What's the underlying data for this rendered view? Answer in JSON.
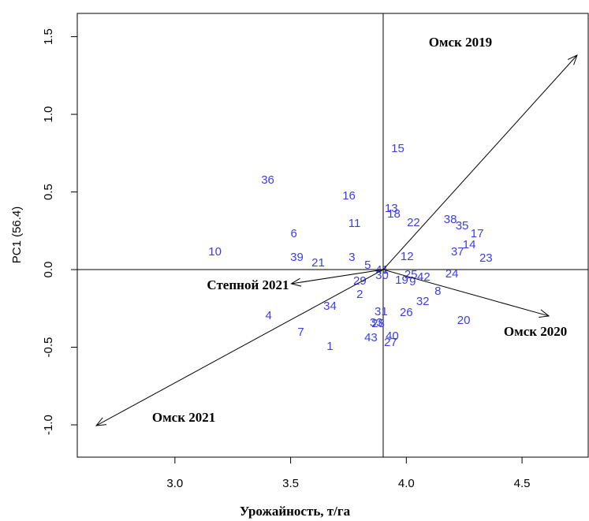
{
  "chart_data": {
    "type": "scatter",
    "xlabel": "Урожайность, т/га",
    "ylabel": "PC1 (56.4)",
    "xlim": [
      2.578,
      4.786
    ],
    "ylim": [
      -1.208,
      1.65
    ],
    "xticks": [
      {
        "value": 3.0,
        "label": "3.0"
      },
      {
        "value": 3.5,
        "label": "3.5"
      },
      {
        "value": 4.0,
        "label": "4.0"
      },
      {
        "value": 4.5,
        "label": "4.5"
      }
    ],
    "yticks": [
      {
        "value": -1.0,
        "label": "-1.0"
      },
      {
        "value": -0.5,
        "label": "-0.5"
      },
      {
        "value": 0.0,
        "label": "0.0"
      },
      {
        "value": 0.5,
        "label": "0.5"
      },
      {
        "value": 1.0,
        "label": "1.0"
      },
      1.5
    ],
    "center": [
      3.9,
      0
    ],
    "color": "#3c3cf0",
    "points": [
      {
        "label": "15",
        "x": 3.963,
        "y": 0.777
      },
      {
        "label": "36",
        "x": 3.401,
        "y": 0.574
      },
      {
        "label": "16",
        "x": 3.752,
        "y": 0.472
      },
      {
        "label": "13",
        "x": 3.935,
        "y": 0.391
      },
      {
        "label": "18",
        "x": 3.946,
        "y": 0.355
      },
      {
        "label": "11",
        "x": 3.776,
        "y": 0.294
      },
      {
        "label": "22",
        "x": 4.031,
        "y": 0.299
      },
      {
        "label": "38",
        "x": 4.19,
        "y": 0.32
      },
      {
        "label": "35",
        "x": 4.241,
        "y": 0.279
      },
      {
        "label": "17",
        "x": 4.306,
        "y": 0.228
      },
      {
        "label": "6",
        "x": 3.514,
        "y": 0.228
      },
      {
        "label": "14",
        "x": 4.272,
        "y": 0.157
      },
      {
        "label": "37",
        "x": 4.221,
        "y": 0.112
      },
      {
        "label": "10",
        "x": 3.173,
        "y": 0.112
      },
      {
        "label": "23",
        "x": 4.344,
        "y": 0.071
      },
      {
        "label": "39",
        "x": 3.527,
        "y": 0.076
      },
      {
        "label": "21",
        "x": 3.619,
        "y": 0.041
      },
      {
        "label": "3",
        "x": 3.765,
        "y": 0.076
      },
      {
        "label": "12",
        "x": 4.003,
        "y": 0.081
      },
      {
        "label": "5",
        "x": 3.833,
        "y": 0.025
      },
      {
        "label": "41",
        "x": 3.895,
        "y": -0.005
      },
      {
        "label": "25",
        "x": 4.02,
        "y": -0.036
      },
      {
        "label": "42",
        "x": 4.075,
        "y": -0.051
      },
      {
        "label": "24",
        "x": 4.197,
        "y": -0.03
      },
      {
        "label": "30",
        "x": 3.895,
        "y": -0.041
      },
      {
        "label": "29",
        "x": 3.799,
        "y": -0.076
      },
      {
        "label": "19",
        "x": 3.98,
        "y": -0.071
      },
      {
        "label": "9",
        "x": 4.027,
        "y": -0.081
      },
      {
        "label": "2",
        "x": 3.799,
        "y": -0.162
      },
      {
        "label": "8",
        "x": 4.136,
        "y": -0.142
      },
      {
        "label": "34",
        "x": 3.67,
        "y": -0.239
      },
      {
        "label": "32",
        "x": 4.071,
        "y": -0.208
      },
      {
        "label": "4",
        "x": 3.405,
        "y": -0.299
      },
      {
        "label": "31",
        "x": 3.891,
        "y": -0.274
      },
      {
        "label": "26",
        "x": 4.0,
        "y": -0.279
      },
      {
        "label": "28",
        "x": 3.878,
        "y": -0.35
      },
      {
        "label": "33",
        "x": 3.87,
        "y": -0.345
      },
      {
        "label": "20",
        "x": 4.248,
        "y": -0.33
      },
      {
        "label": "7",
        "x": 3.544,
        "y": -0.406
      },
      {
        "label": "43",
        "x": 3.847,
        "y": -0.442
      },
      {
        "label": "40",
        "x": 3.939,
        "y": -0.431
      },
      {
        "label": "27",
        "x": 3.932,
        "y": -0.472
      },
      {
        "label": "1",
        "x": 3.67,
        "y": -0.497
      }
    ],
    "vectors": [
      {
        "label": "Омск 2019",
        "x": 4.738,
        "y": 1.381
      },
      {
        "label": "Омск 2020",
        "x": 4.616,
        "y": -0.299
      },
      {
        "label": "Степной 2021",
        "x": 3.503,
        "y": -0.091
      },
      {
        "label": "Омск 2021",
        "x": 2.66,
        "y": -1.005
      }
    ]
  }
}
